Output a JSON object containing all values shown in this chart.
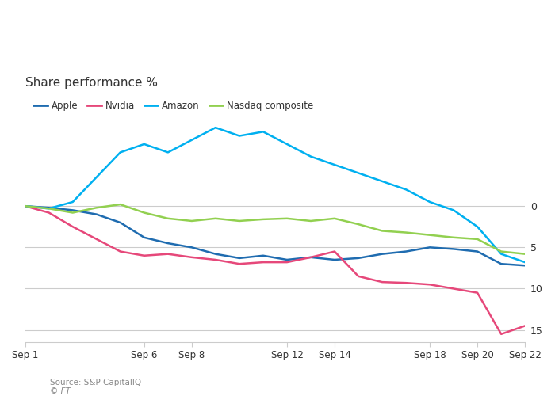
{
  "title": "Share performance %",
  "x_labels": [
    "Sep 1",
    "Sep 6",
    "Sep 8",
    "Sep 12",
    "Sep 14",
    "Sep 18",
    "Sep 20",
    "Sep 22"
  ],
  "x_positions": [
    1,
    6,
    8,
    12,
    14,
    18,
    20,
    22
  ],
  "series": {
    "Apple": {
      "color": "#1f6cb0",
      "x": [
        1,
        2,
        3,
        4,
        5,
        6,
        7,
        8,
        9,
        10,
        11,
        12,
        13,
        14,
        15,
        16,
        17,
        18,
        19,
        20,
        21,
        22
      ],
      "y": [
        0.0,
        -0.2,
        -0.5,
        -1.0,
        -2.0,
        -3.8,
        -4.5,
        -5.0,
        -5.8,
        -6.3,
        -6.0,
        -6.5,
        -6.2,
        -6.5,
        -6.3,
        -5.8,
        -5.5,
        -5.0,
        -5.2,
        -5.5,
        -7.0,
        -7.2
      ]
    },
    "Nvidia": {
      "color": "#e6487a",
      "x": [
        1,
        2,
        3,
        4,
        5,
        6,
        7,
        8,
        9,
        10,
        11,
        12,
        13,
        14,
        15,
        16,
        17,
        18,
        19,
        20,
        21,
        22
      ],
      "y": [
        0.0,
        -0.8,
        -2.5,
        -4.0,
        -5.5,
        -6.0,
        -5.8,
        -6.2,
        -6.5,
        -7.0,
        -6.8,
        -6.8,
        -6.2,
        -5.5,
        -8.5,
        -9.2,
        -9.3,
        -9.5,
        -10.0,
        -10.5,
        -15.5,
        -14.5
      ]
    },
    "Amazon": {
      "color": "#00b0f0",
      "x": [
        1,
        2,
        3,
        4,
        5,
        6,
        7,
        8,
        9,
        10,
        11,
        12,
        13,
        14,
        15,
        16,
        17,
        18,
        19,
        20,
        21,
        22
      ],
      "y": [
        0.0,
        -0.3,
        0.5,
        3.5,
        6.5,
        7.5,
        6.5,
        8.0,
        9.5,
        8.5,
        9.0,
        7.5,
        6.0,
        5.0,
        4.0,
        3.0,
        2.0,
        0.5,
        -0.5,
        -2.5,
        -5.8,
        -6.8
      ]
    },
    "Nasdaq composite": {
      "color": "#92d050",
      "x": [
        1,
        2,
        3,
        4,
        5,
        6,
        7,
        8,
        9,
        10,
        11,
        12,
        13,
        14,
        15,
        16,
        17,
        18,
        19,
        20,
        21,
        22
      ],
      "y": [
        0.0,
        -0.3,
        -0.8,
        -0.2,
        0.2,
        -0.8,
        -1.5,
        -1.8,
        -1.5,
        -1.8,
        -1.6,
        -1.5,
        -1.8,
        -1.5,
        -2.2,
        -3.0,
        -3.2,
        -3.5,
        -3.8,
        -4.0,
        -5.5,
        -5.8
      ]
    }
  },
  "ylim": [
    -16.5,
    11
  ],
  "yticks": [
    0,
    -5,
    -10,
    -15
  ],
  "xlim": [
    1,
    22
  ],
  "source_text": "Source: S&P CapitalIQ",
  "ft_text": "© FT",
  "background_color": "#ffffff",
  "plot_background": "#ffffff",
  "grid_color": "#cccccc",
  "text_color": "#333333",
  "source_color": "#888888"
}
